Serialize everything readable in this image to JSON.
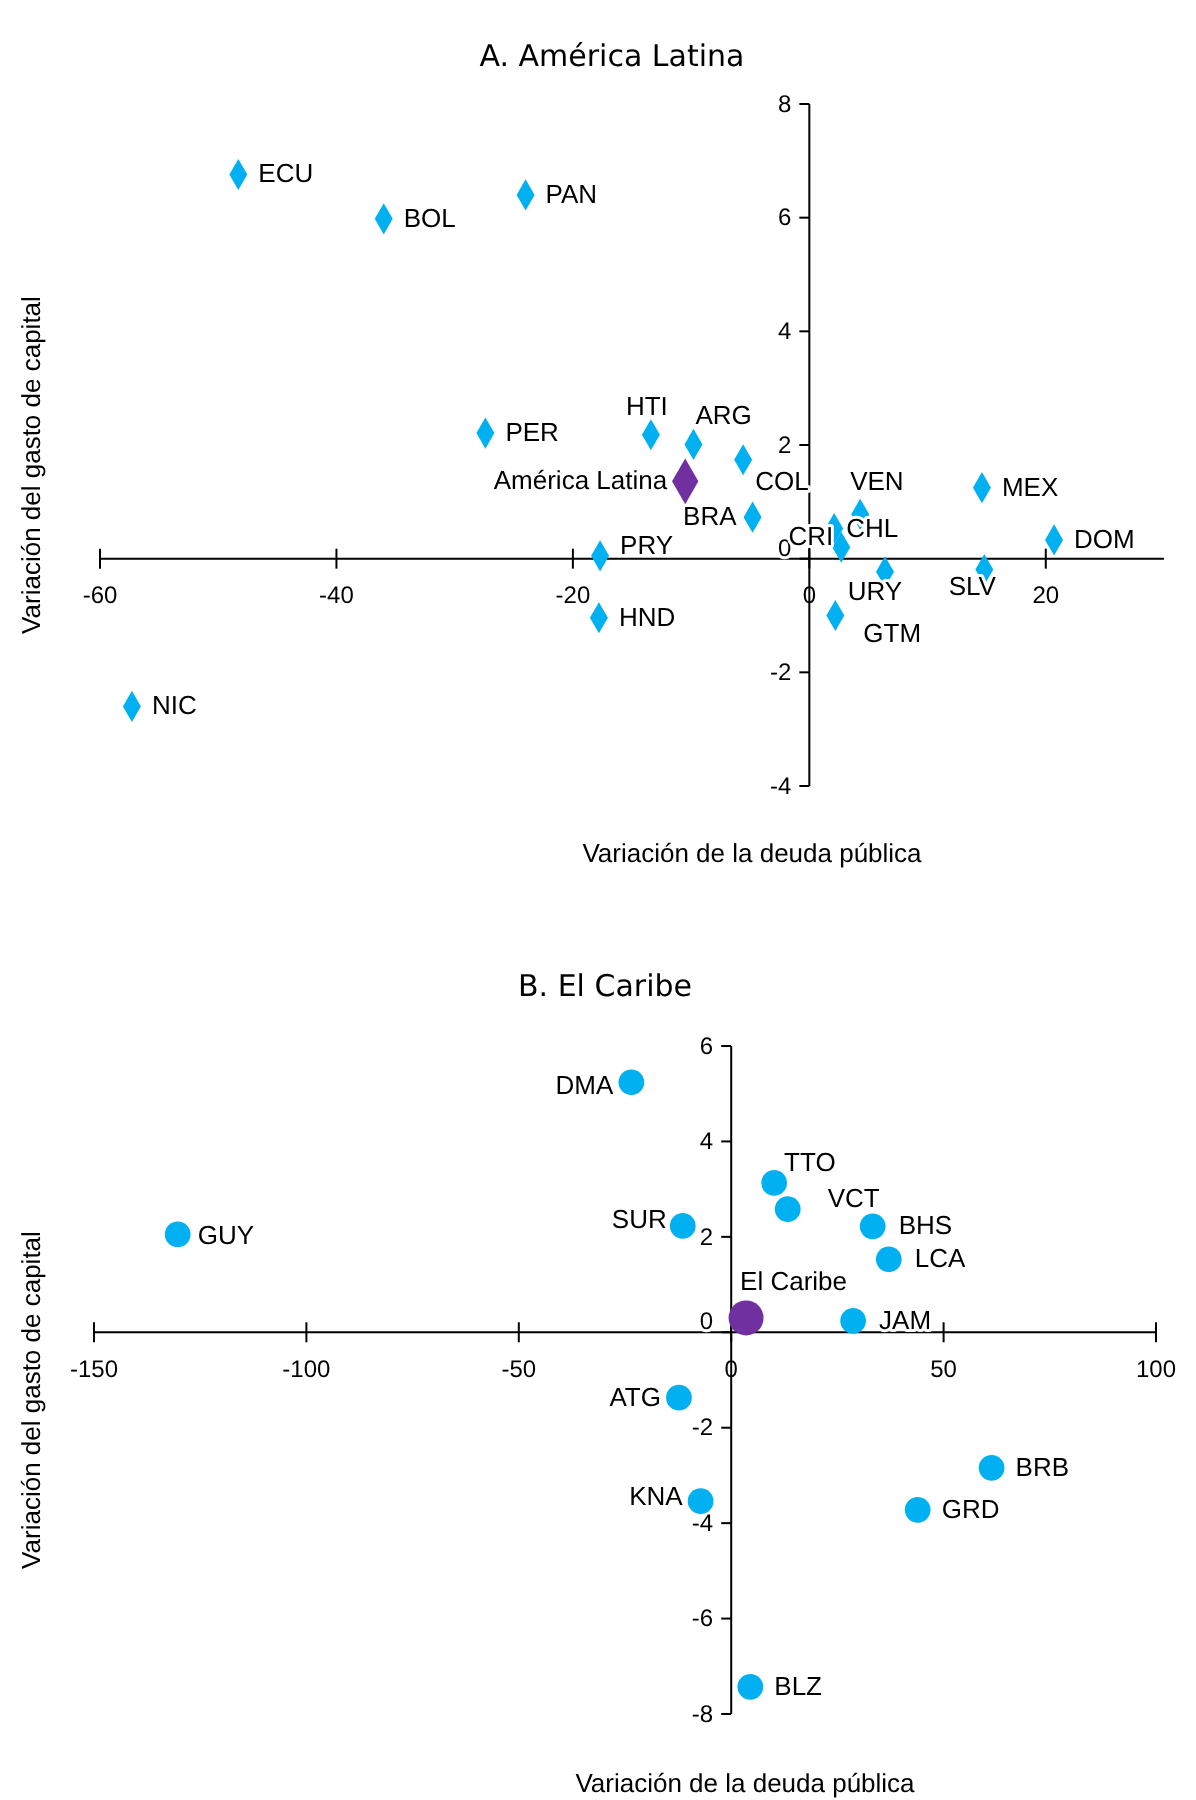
{
  "chart_data": [
    {
      "type": "scatter",
      "title": "A. América Latina",
      "xlabel": "Variación de la deuda pública",
      "ylabel": "Variación del gasto de capital",
      "marker": "diamond",
      "grid": false,
      "xlim": [
        -60,
        30
      ],
      "xticks": [
        -60,
        -40,
        -20,
        0,
        20
      ],
      "ylim": [
        -4,
        8
      ],
      "yticks": [
        -4,
        -2,
        0,
        2,
        4,
        6,
        8
      ],
      "series": [
        {
          "color": "#00b0f0",
          "x": [
            -48.3,
            -36.0,
            -24.0,
            -27.4,
            -13.4,
            -9.8,
            -5.6,
            -4.8,
            4.3,
            2.1,
            2.7,
            14.6,
            20.7,
            6.4,
            14.8,
            -17.7,
            -17.8,
            2.2,
            -57.3
          ],
          "values": [
            6.76,
            5.98,
            6.4,
            2.21,
            2.18,
            2.01,
            1.74,
            0.73,
            0.78,
            0.53,
            0.2,
            1.25,
            0.33,
            -0.23,
            -0.19,
            0.05,
            -1.04,
            -1.0,
            -2.6
          ]
        },
        {
          "color": "#7030a0",
          "x": [
            -10.5
          ],
          "values": [
            1.36
          ]
        }
      ],
      "annotations": [
        {
          "text": "ECU",
          "x": -48.3,
          "y": 6.76
        },
        {
          "text": "BOL",
          "x": -36.0,
          "y": 5.98
        },
        {
          "text": "PAN",
          "x": -24.0,
          "y": 6.4
        },
        {
          "text": "PER",
          "x": -27.4,
          "y": 2.21
        },
        {
          "text": "HTI",
          "x": -13.4,
          "y": 2.18
        },
        {
          "text": "ARG",
          "x": -9.8,
          "y": 2.01
        },
        {
          "text": "COL",
          "x": -5.6,
          "y": 1.74
        },
        {
          "text": "BRA",
          "x": -4.8,
          "y": 0.73
        },
        {
          "text": "VEN",
          "x": 4.3,
          "y": 0.78
        },
        {
          "text": "CHL",
          "x": 2.1,
          "y": 0.53
        },
        {
          "text": "CRI",
          "x": 2.7,
          "y": 0.2
        },
        {
          "text": "MEX",
          "x": 14.6,
          "y": 1.25
        },
        {
          "text": "DOM",
          "x": 20.7,
          "y": 0.33
        },
        {
          "text": "URY",
          "x": 6.4,
          "y": -0.23
        },
        {
          "text": "SLV",
          "x": 14.8,
          "y": -0.19
        },
        {
          "text": "PRY",
          "x": -17.7,
          "y": 0.05
        },
        {
          "text": "HND",
          "x": -17.8,
          "y": -1.04
        },
        {
          "text": "GTM",
          "x": 2.2,
          "y": -1.0
        },
        {
          "text": "NIC",
          "x": -57.3,
          "y": -2.6
        },
        {
          "text": "América Latina",
          "x": -10.5,
          "y": 1.36
        }
      ]
    },
    {
      "type": "scatter",
      "title": "B. El Caribe",
      "xlabel": "Variación de la deuda pública",
      "ylabel": "Variación del gasto de capital",
      "marker": "circle",
      "grid": false,
      "xlim": [
        -150,
        100
      ],
      "xticks": [
        -150,
        -100,
        -50,
        0,
        50,
        100
      ],
      "ylim": [
        -8,
        6
      ],
      "yticks": [
        -8,
        -6,
        -4,
        -2,
        0,
        2,
        4,
        6
      ],
      "series": [
        {
          "color": "#00b0f0",
          "x": [
            -23.5,
            -130.3,
            -11.4,
            10.1,
            13.3,
            33.3,
            37.1,
            28.7,
            -12.3,
            -7.2,
            61.3,
            43.9,
            4.5
          ],
          "values": [
            5.24,
            2.05,
            2.23,
            3.13,
            2.58,
            2.22,
            1.53,
            0.24,
            -1.37,
            -3.54,
            -2.84,
            -3.72,
            -7.43
          ]
        },
        {
          "color": "#7030a0",
          "x": [
            3.5
          ],
          "values": [
            0.3
          ]
        }
      ],
      "annotations": [
        {
          "text": "DMA",
          "x": -23.5,
          "y": 5.24
        },
        {
          "text": "GUY",
          "x": -130.3,
          "y": 2.05
        },
        {
          "text": "SUR",
          "x": -11.4,
          "y": 2.23
        },
        {
          "text": "TTO",
          "x": 10.1,
          "y": 3.13
        },
        {
          "text": "VCT",
          "x": 13.3,
          "y": 2.58
        },
        {
          "text": "BHS",
          "x": 33.3,
          "y": 2.22
        },
        {
          "text": "LCA",
          "x": 37.1,
          "y": 1.53
        },
        {
          "text": "JAM",
          "x": 28.7,
          "y": 0.24
        },
        {
          "text": "ATG",
          "x": -12.3,
          "y": -1.37
        },
        {
          "text": "KNA",
          "x": -7.2,
          "y": -3.54
        },
        {
          "text": "BRB",
          "x": 61.3,
          "y": -2.84
        },
        {
          "text": "GRD",
          "x": 43.9,
          "y": -3.72
        },
        {
          "text": "BLZ",
          "x": 4.5,
          "y": -7.43
        },
        {
          "text": "El Caribe",
          "x": 3.5,
          "y": 0.3
        }
      ]
    }
  ]
}
